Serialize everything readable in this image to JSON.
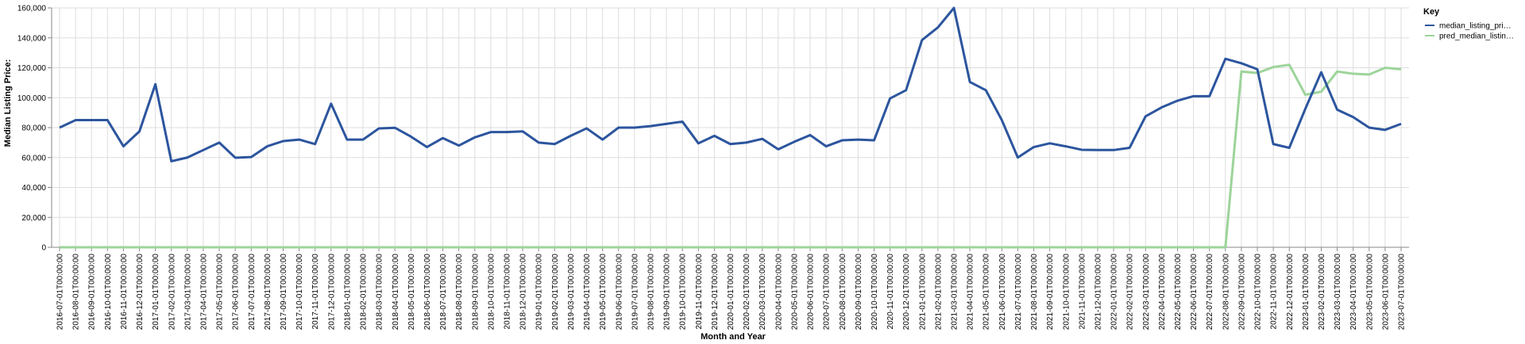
{
  "chart_data": {
    "type": "line",
    "xlabel": "Month and Year",
    "ylabel": "Median Listing Price:",
    "ylim": [
      0,
      160000
    ],
    "y_ticks": [
      "0",
      "20,000",
      "40,000",
      "60,000",
      "80,000",
      "100,000",
      "120,000",
      "140,000",
      "160,000"
    ],
    "grid": true,
    "legend": {
      "title": "Key",
      "placement": "right",
      "entries": [
        "median_listing_pri…",
        "pred_median_listin…"
      ]
    },
    "x": [
      "2016-07-01T00:00:00",
      "2016-08-01T00:00:00",
      "2016-09-01T00:00:00",
      "2016-10-01T00:00:00",
      "2016-11-01T00:00:00",
      "2016-12-01T00:00:00",
      "2017-01-01T00:00:00",
      "2017-02-01T00:00:00",
      "2017-03-01T00:00:00",
      "2017-04-01T00:00:00",
      "2017-05-01T00:00:00",
      "2017-06-01T00:00:00",
      "2017-07-01T00:00:00",
      "2017-08-01T00:00:00",
      "2017-09-01T00:00:00",
      "2017-10-01T00:00:00",
      "2017-11-01T00:00:00",
      "2017-12-01T00:00:00",
      "2018-01-01T00:00:00",
      "2018-02-01T00:00:00",
      "2018-03-01T00:00:00",
      "2018-04-01T00:00:00",
      "2018-05-01T00:00:00",
      "2018-06-01T00:00:00",
      "2018-07-01T00:00:00",
      "2018-08-01T00:00:00",
      "2018-09-01T00:00:00",
      "2018-10-01T00:00:00",
      "2018-11-01T00:00:00",
      "2018-12-01T00:00:00",
      "2019-01-01T00:00:00",
      "2019-02-01T00:00:00",
      "2019-03-01T00:00:00",
      "2019-04-01T00:00:00",
      "2019-05-01T00:00:00",
      "2019-06-01T00:00:00",
      "2019-07-01T00:00:00",
      "2019-08-01T00:00:00",
      "2019-09-01T00:00:00",
      "2019-10-01T00:00:00",
      "2019-11-01T00:00:00",
      "2019-12-01T00:00:00",
      "2020-01-01T00:00:00",
      "2020-02-01T00:00:00",
      "2020-03-01T00:00:00",
      "2020-04-01T00:00:00",
      "2020-05-01T00:00:00",
      "2020-06-01T00:00:00",
      "2020-07-01T00:00:00",
      "2020-08-01T00:00:00",
      "2020-09-01T00:00:00",
      "2020-10-01T00:00:00",
      "2020-11-01T00:00:00",
      "2020-12-01T00:00:00",
      "2021-01-01T00:00:00",
      "2021-02-01T00:00:00",
      "2021-03-01T00:00:00",
      "2021-04-01T00:00:00",
      "2021-05-01T00:00:00",
      "2021-06-01T00:00:00",
      "2021-07-01T00:00:00",
      "2021-08-01T00:00:00",
      "2021-09-01T00:00:00",
      "2021-10-01T00:00:00",
      "2021-11-01T00:00:00",
      "2021-12-01T00:00:00",
      "2022-01-01T00:00:00",
      "2022-02-01T00:00:00",
      "2022-03-01T00:00:00",
      "2022-04-01T00:00:00",
      "2022-05-01T00:00:00",
      "2022-06-01T00:00:00",
      "2022-07-01T00:00:00",
      "2022-08-01T00:00:00",
      "2022-09-01T00:00:00",
      "2022-10-01T00:00:00",
      "2022-11-01T00:00:00",
      "2022-12-01T00:00:00",
      "2023-01-01T00:00:00",
      "2023-02-01T00:00:00",
      "2023-03-01T00:00:00",
      "2023-04-01T00:00:00",
      "2023-05-01T00:00:00",
      "2023-06-01T00:00:00",
      "2023-07-01T00:00:00"
    ],
    "series": [
      {
        "name": "median_listing_pri…",
        "color": "#2c559e",
        "values": [
          80000,
          85000,
          85000,
          85000,
          67500,
          77500,
          109000,
          57500,
          60000,
          65000,
          70000,
          59900,
          60300,
          67500,
          71000,
          72000,
          69000,
          96000,
          72000,
          72000,
          79500,
          79900,
          74000,
          67000,
          73000,
          68000,
          73500,
          77000,
          77000,
          77500,
          70000,
          69000,
          74500,
          79500,
          72000,
          80000,
          80000,
          81000,
          82500,
          84000,
          69500,
          74500,
          69000,
          70000,
          72500,
          65500,
          70500,
          75000,
          67500,
          71500,
          72000,
          71500,
          99500,
          105000,
          138500,
          147000,
          160000,
          110500,
          105000,
          85000,
          60000,
          67000,
          69500,
          67500,
          65200,
          65000,
          65000,
          66500,
          87500,
          93500,
          98000,
          101000,
          101000,
          126000,
          123000,
          119000,
          69000,
          66500,
          92500,
          117000,
          92000,
          87000,
          80000,
          78500,
          82500
        ]
      },
      {
        "name": "pred_median_listin…",
        "color": "#9dd49a",
        "values": [
          0,
          0,
          0,
          0,
          0,
          0,
          0,
          0,
          0,
          0,
          0,
          0,
          0,
          0,
          0,
          0,
          0,
          0,
          0,
          0,
          0,
          0,
          0,
          0,
          0,
          0,
          0,
          0,
          0,
          0,
          0,
          0,
          0,
          0,
          0,
          0,
          0,
          0,
          0,
          0,
          0,
          0,
          0,
          0,
          0,
          0,
          0,
          0,
          0,
          0,
          0,
          0,
          0,
          0,
          0,
          0,
          0,
          0,
          0,
          0,
          0,
          0,
          0,
          0,
          0,
          0,
          0,
          0,
          0,
          0,
          0,
          0,
          0,
          0,
          117500,
          116500,
          120500,
          122000,
          102000,
          104000,
          117500,
          116000,
          115500,
          120000,
          119000
        ]
      }
    ]
  }
}
